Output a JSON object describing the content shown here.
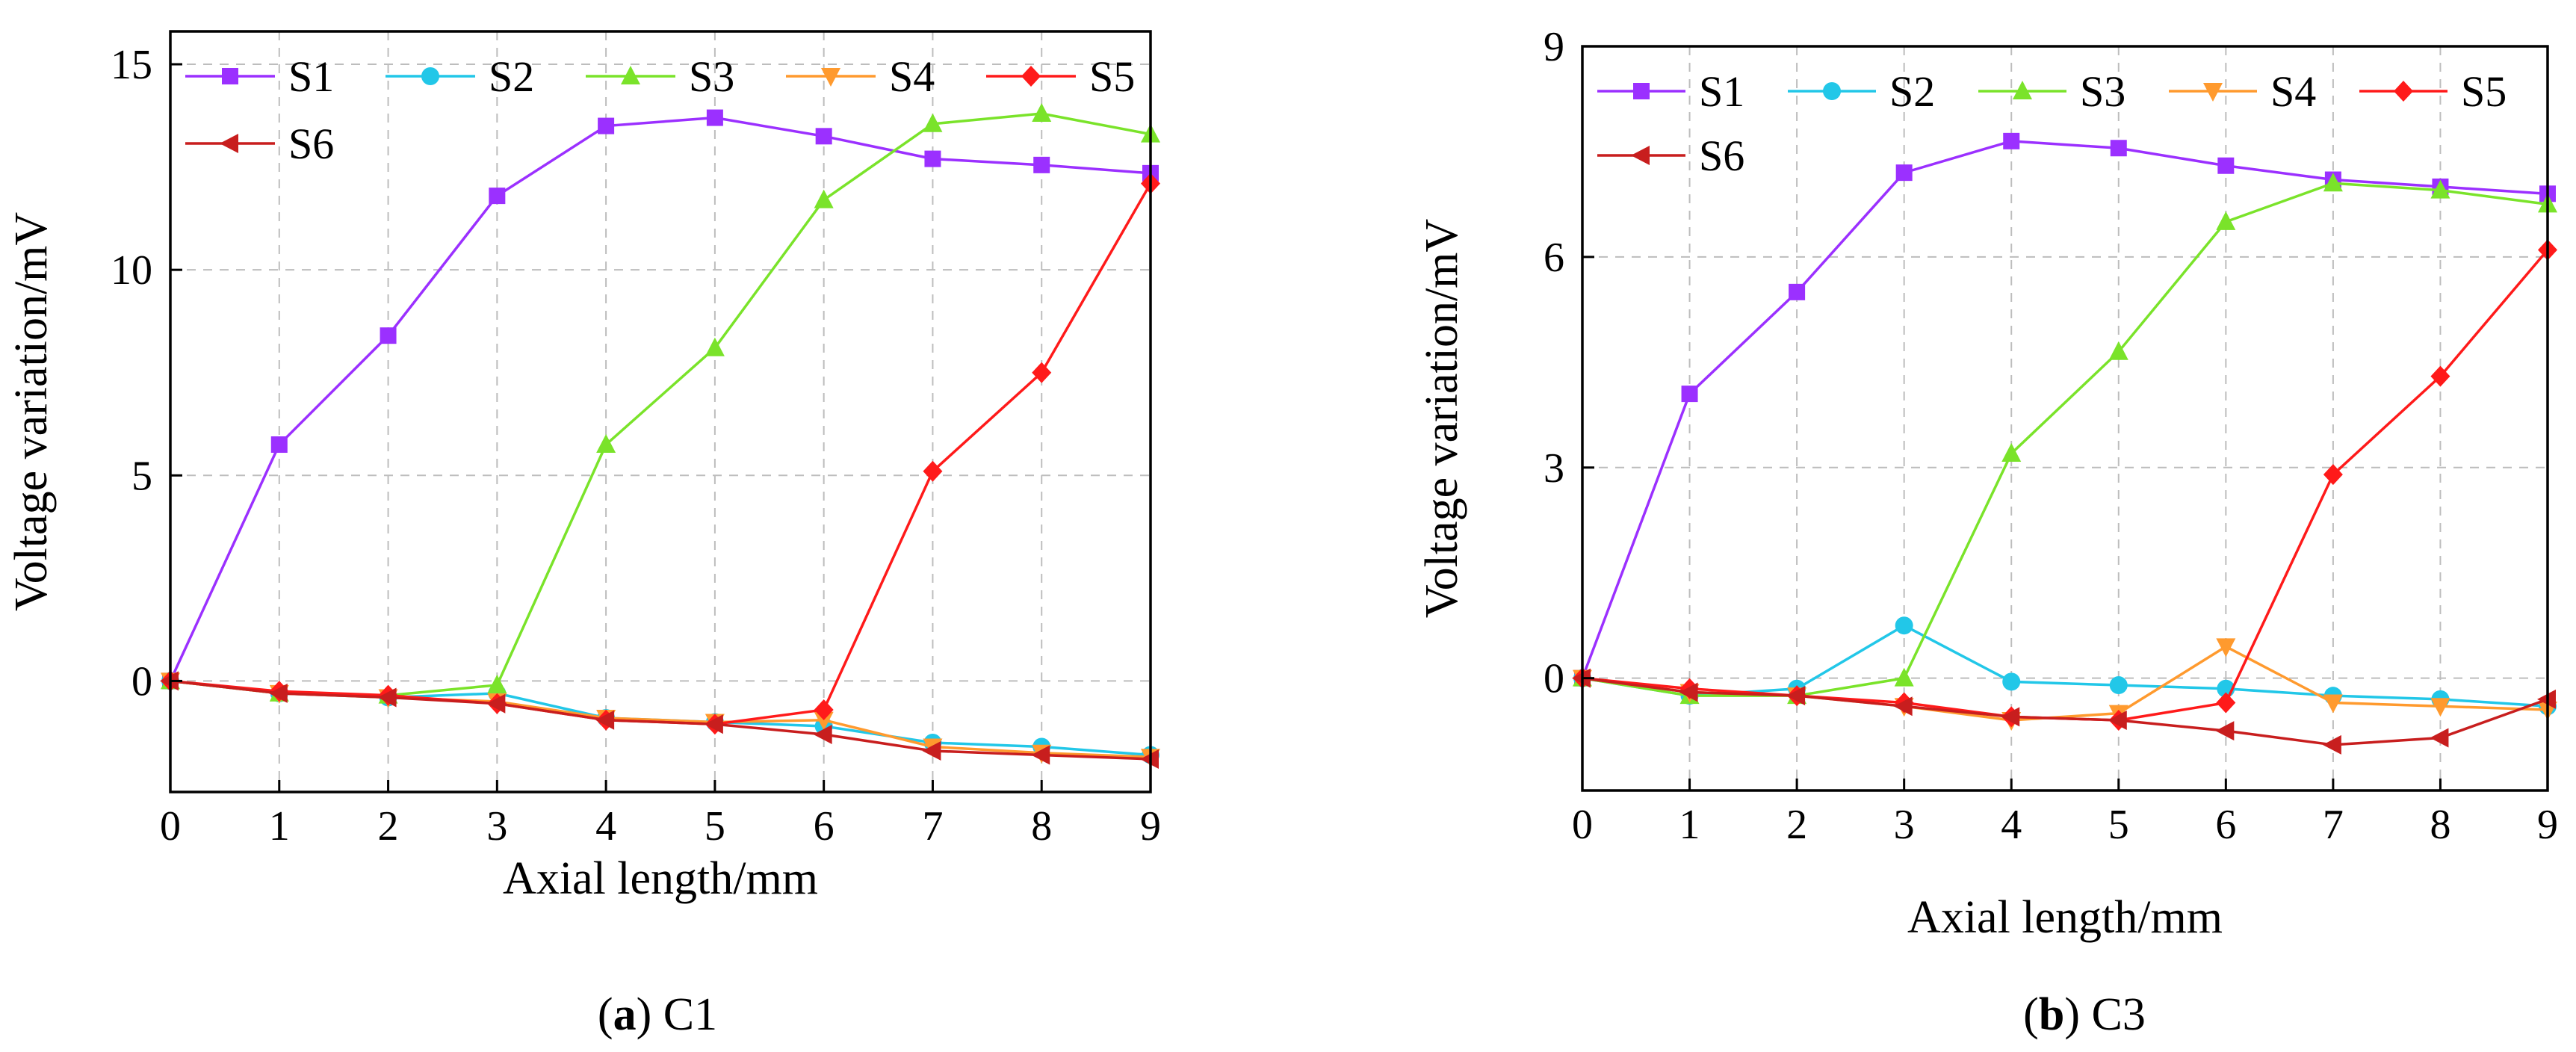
{
  "chart_data": [
    {
      "type": "line",
      "panel": "a",
      "caption_letter": "a",
      "caption_rest": " C1",
      "xlabel": "Axial length/mm",
      "ylabel": "Voltage variation/mV",
      "xlim": [
        0,
        9
      ],
      "ylim": [
        -2.7,
        15.8
      ],
      "xticks": [
        0,
        1,
        2,
        3,
        4,
        5,
        6,
        7,
        8,
        9
      ],
      "yticks": [
        0,
        5,
        10,
        15
      ],
      "grid": true,
      "legend_placement": "top",
      "x": [
        0,
        1,
        2,
        3,
        4,
        5,
        6,
        7,
        8,
        9
      ],
      "series": [
        {
          "name": "S1",
          "color": "#9b30ff",
          "marker": "square",
          "values": [
            0,
            5.75,
            8.4,
            11.8,
            13.5,
            13.7,
            13.25,
            12.7,
            12.55,
            12.35
          ]
        },
        {
          "name": "S2",
          "color": "#22c7e8",
          "marker": "circle",
          "values": [
            0,
            -0.3,
            -0.4,
            -0.3,
            -0.9,
            -1.0,
            -1.1,
            -1.5,
            -1.6,
            -1.8
          ]
        },
        {
          "name": "S3",
          "color": "#7ae32a",
          "marker": "triangle-up",
          "values": [
            0,
            -0.3,
            -0.35,
            -0.1,
            5.75,
            8.1,
            11.7,
            13.55,
            13.8,
            13.3
          ]
        },
        {
          "name": "S4",
          "color": "#ff9a2e",
          "marker": "triangle-down",
          "values": [
            0,
            -0.3,
            -0.4,
            -0.5,
            -0.9,
            -1.0,
            -0.95,
            -1.6,
            -1.75,
            -1.85
          ]
        },
        {
          "name": "S5",
          "color": "#ff1a1a",
          "marker": "diamond",
          "values": [
            0,
            -0.25,
            -0.35,
            -0.55,
            -0.95,
            -1.05,
            -0.7,
            5.1,
            7.5,
            12.1
          ]
        },
        {
          "name": "S6",
          "color": "#c81e1e",
          "marker": "triangle-left",
          "values": [
            0,
            -0.3,
            -0.4,
            -0.55,
            -0.95,
            -1.05,
            -1.3,
            -1.7,
            -1.8,
            -1.9
          ]
        }
      ]
    },
    {
      "type": "line",
      "panel": "b",
      "caption_letter": "b",
      "caption_rest": " C3",
      "xlabel": "Axial length/mm",
      "ylabel": "Voltage variation/mV",
      "xlim": [
        0,
        9
      ],
      "ylim": [
        -1.6,
        9
      ],
      "xticks": [
        0,
        1,
        2,
        3,
        4,
        5,
        6,
        7,
        8,
        9
      ],
      "yticks": [
        0,
        3,
        6,
        9
      ],
      "grid": true,
      "legend_placement": "top",
      "x": [
        0,
        1,
        2,
        3,
        4,
        5,
        6,
        7,
        8,
        9
      ],
      "series": [
        {
          "name": "S1",
          "color": "#9b30ff",
          "marker": "square",
          "values": [
            0,
            4.05,
            5.5,
            7.2,
            7.65,
            7.55,
            7.3,
            7.1,
            7.0,
            6.9
          ]
        },
        {
          "name": "S2",
          "color": "#22c7e8",
          "marker": "circle",
          "values": [
            0,
            -0.25,
            -0.15,
            0.75,
            -0.05,
            -0.1,
            -0.15,
            -0.25,
            -0.3,
            -0.4
          ]
        },
        {
          "name": "S3",
          "color": "#7ae32a",
          "marker": "triangle-up",
          "values": [
            0,
            -0.25,
            -0.25,
            0.0,
            3.2,
            4.65,
            6.5,
            7.05,
            6.95,
            6.75
          ]
        },
        {
          "name": "S4",
          "color": "#ff9a2e",
          "marker": "triangle-down",
          "values": [
            0,
            -0.2,
            -0.25,
            -0.4,
            -0.6,
            -0.5,
            0.45,
            -0.35,
            -0.4,
            -0.45
          ]
        },
        {
          "name": "S5",
          "color": "#ff1a1a",
          "marker": "diamond",
          "values": [
            0,
            -0.15,
            -0.25,
            -0.35,
            -0.55,
            -0.6,
            -0.35,
            2.9,
            4.3,
            6.1
          ]
        },
        {
          "name": "S6",
          "color": "#c81e1e",
          "marker": "triangle-left",
          "values": [
            0,
            -0.2,
            -0.25,
            -0.4,
            -0.55,
            -0.6,
            -0.75,
            -0.95,
            -0.85,
            -0.3
          ]
        }
      ]
    }
  ]
}
